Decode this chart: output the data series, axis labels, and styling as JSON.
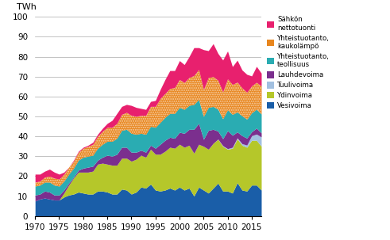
{
  "years": [
    1970,
    1971,
    1972,
    1973,
    1974,
    1975,
    1976,
    1977,
    1978,
    1979,
    1980,
    1981,
    1982,
    1983,
    1984,
    1985,
    1986,
    1987,
    1988,
    1989,
    1990,
    1991,
    1992,
    1993,
    1994,
    1995,
    1996,
    1997,
    1998,
    1999,
    2000,
    2001,
    2002,
    2003,
    2004,
    2005,
    2006,
    2007,
    2008,
    2009,
    2010,
    2011,
    2012,
    2013,
    2014,
    2015,
    2016,
    2017
  ],
  "vesivoima": [
    7.5,
    8.5,
    9.0,
    8.5,
    8.0,
    8.0,
    9.5,
    10.5,
    11.0,
    12.0,
    11.5,
    11.0,
    11.0,
    12.5,
    12.5,
    12.0,
    11.0,
    11.0,
    13.5,
    13.0,
    11.0,
    12.0,
    14.5,
    14.0,
    16.0,
    13.0,
    12.5,
    13.0,
    14.0,
    13.0,
    14.5,
    13.0,
    14.0,
    10.0,
    14.5,
    13.0,
    11.5,
    14.0,
    16.5,
    12.5,
    12.5,
    11.5,
    16.7,
    13.0,
    12.5,
    15.5,
    15.5,
    13.0
  ],
  "ydinvoima": [
    0,
    0,
    0,
    0,
    0,
    0,
    2.0,
    5.0,
    8.0,
    10.0,
    10.5,
    11.0,
    11.5,
    13.5,
    14.0,
    14.0,
    14.5,
    14.5,
    15.5,
    16.0,
    16.5,
    16.5,
    16.0,
    15.5,
    17.5,
    18.0,
    18.5,
    19.5,
    20.5,
    21.0,
    21.5,
    21.5,
    21.5,
    21.5,
    21.5,
    22.0,
    22.0,
    22.5,
    22.0,
    22.5,
    21.0,
    22.5,
    22.0,
    22.5,
    22.0,
    22.5,
    22.5,
    22.0
  ],
  "tuulivoima": [
    0,
    0,
    0,
    0,
    0,
    0,
    0,
    0,
    0,
    0,
    0,
    0,
    0,
    0,
    0,
    0,
    0,
    0,
    0,
    0,
    0,
    0,
    0,
    0,
    0,
    0,
    0,
    0,
    0,
    0,
    0,
    0,
    0,
    0,
    0,
    0,
    0,
    0,
    0.1,
    0.3,
    0.3,
    0.5,
    0.5,
    0.8,
    1.1,
    2.3,
    3.1,
    4.7
  ],
  "lauhdevoima": [
    3.0,
    2.5,
    3.5,
    3.5,
    2.5,
    2.5,
    1.5,
    1.0,
    0.5,
    1.0,
    2.0,
    2.5,
    2.5,
    2.0,
    3.0,
    4.5,
    4.5,
    5.5,
    5.5,
    5.5,
    4.5,
    3.5,
    2.5,
    2.5,
    2.0,
    3.0,
    5.0,
    5.5,
    5.0,
    5.0,
    6.0,
    7.0,
    8.0,
    12.0,
    10.5,
    3.5,
    9.5,
    7.0,
    4.0,
    3.5,
    9.0,
    6.0,
    3.0,
    4.0,
    3.5,
    2.0,
    3.0,
    2.0
  ],
  "yhteistuotanto_teollisuus": [
    4.5,
    4.5,
    4.5,
    5.0,
    5.0,
    4.5,
    4.5,
    4.5,
    4.5,
    5.0,
    5.5,
    5.5,
    5.5,
    6.0,
    6.5,
    7.0,
    7.5,
    8.0,
    8.5,
    9.0,
    9.5,
    9.0,
    8.5,
    9.0,
    9.5,
    10.5,
    11.0,
    11.5,
    12.0,
    12.5,
    12.5,
    12.0,
    12.0,
    12.5,
    12.0,
    11.5,
    11.5,
    11.5,
    11.0,
    10.0,
    10.5,
    10.5,
    10.0,
    10.0,
    9.5,
    9.5,
    9.5,
    9.5
  ],
  "yhteistuotanto_kaukolampo": [
    2.0,
    2.0,
    2.5,
    3.0,
    3.5,
    3.5,
    3.5,
    3.5,
    3.5,
    4.0,
    4.5,
    5.0,
    5.5,
    6.0,
    6.5,
    7.0,
    7.0,
    7.5,
    8.0,
    8.5,
    9.0,
    9.0,
    9.0,
    9.5,
    10.0,
    10.5,
    12.0,
    12.0,
    12.5,
    13.0,
    14.0,
    13.5,
    14.0,
    14.5,
    15.0,
    13.5,
    15.0,
    15.0,
    14.5,
    13.5,
    15.5,
    15.0,
    15.0,
    14.0,
    13.5,
    13.5,
    13.5,
    14.0
  ],
  "sahkon_nettotuonti": [
    4.0,
    3.5,
    3.0,
    3.5,
    3.0,
    2.5,
    1.0,
    0.0,
    0.5,
    0.5,
    0.5,
    0.5,
    1.0,
    1.0,
    1.5,
    2.0,
    3.5,
    5.0,
    4.0,
    4.0,
    5.0,
    4.5,
    3.5,
    3.0,
    2.5,
    3.0,
    4.5,
    7.0,
    9.0,
    8.5,
    9.5,
    9.0,
    10.5,
    14.0,
    11.0,
    20.0,
    13.5,
    16.5,
    13.5,
    16.0,
    14.0,
    9.0,
    11.0,
    9.0,
    9.0,
    5.0,
    8.0,
    6.5
  ],
  "colors": {
    "vesivoima": "#1a5ea8",
    "ydinvoima": "#b5c72a",
    "tuulivoima": "#a2c0e0",
    "lauhdevoima": "#7b2f8e",
    "yhteistuotanto_teollisuus": "#2aacb2",
    "yhteistuotanto_kaukolampo": "#e8861e",
    "sahkon_nettotuonti": "#e8206e"
  },
  "ylabel": "TWh",
  "ylim": [
    0,
    100
  ],
  "yticks": [
    0,
    10,
    20,
    30,
    40,
    50,
    60,
    70,
    80,
    90,
    100
  ],
  "xticks": [
    1970,
    1975,
    1980,
    1985,
    1990,
    1995,
    2000,
    2005,
    2010,
    2015
  ],
  "legend_labels": [
    "Sähkön\nnettotuonti",
    "Yhteistuotanto,\nkaukolämpö",
    "Yhteistuotanto,\nteollisuus",
    "Lauhdevoima",
    "Tuulivoima",
    "Ydinvoima",
    "Vesivoima"
  ]
}
